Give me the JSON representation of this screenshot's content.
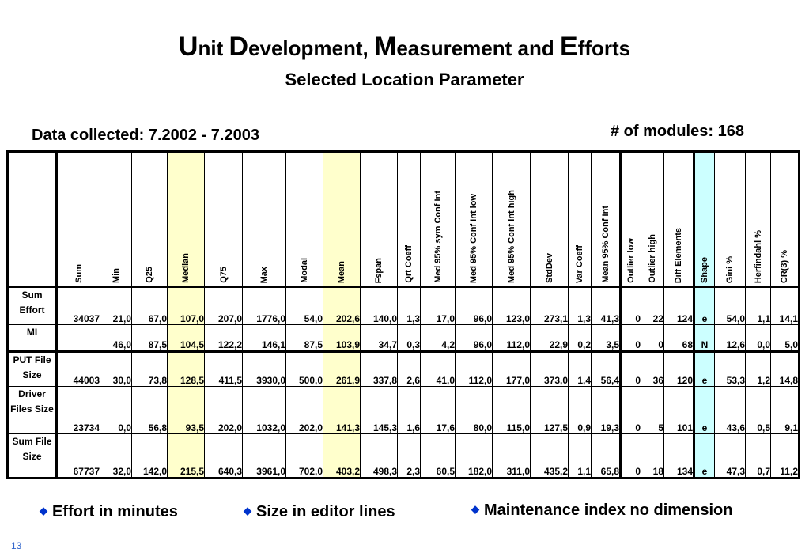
{
  "title": {
    "parts": [
      {
        "cap": "U",
        "rest": "nit "
      },
      {
        "cap": "D",
        "rest": "evelopment, "
      },
      {
        "cap": "M",
        "rest": "easurement and "
      },
      {
        "cap": "E",
        "rest": "fforts"
      }
    ],
    "subtitle": "Selected Location Parameter"
  },
  "collected": "Data collected: 7.2002 - 7.2003",
  "modules": "# of modules: 168",
  "table": {
    "headers": [
      "Sum",
      "Min",
      "Q25",
      "Median",
      "Q75",
      "Max",
      "Modal",
      "Mean",
      "Fspan",
      "Qrt Coeff",
      "Med 95% sym Conf Int",
      "Med 95% Conf Int low",
      "Med 95% Conf Int high",
      "StdDev",
      "Var Coeff",
      "Mean 95%  Conf Int",
      "Outlier low",
      "Outlier high",
      "Diff Elements",
      "Shape",
      "Gini %",
      "Herfindahl %",
      "CR(3) %"
    ],
    "rows": [
      {
        "label": [
          "Sum",
          "Effort"
        ],
        "values": [
          "34037",
          "21,0",
          "67,0",
          "107,0",
          "207,0",
          "1776,0",
          "54,0",
          "202,6",
          "140,0",
          "1,3",
          "17,0",
          "96,0",
          "123,0",
          "273,1",
          "1,3",
          "41,3",
          "0",
          "22",
          "124",
          "e",
          "54,0",
          "1,1",
          "14,1"
        ]
      },
      {
        "label": [
          "MI"
        ],
        "values": [
          "",
          "46,0",
          "87,5",
          "104,5",
          "122,2",
          "146,1",
          "87,5",
          "103,9",
          "34,7",
          "0,3",
          "4,2",
          "96,0",
          "112,0",
          "22,9",
          "0,2",
          "3,5",
          "0",
          "0",
          "68",
          "N",
          "12,6",
          "0,0",
          "5,0"
        ]
      },
      {
        "label": [
          "PUT File",
          "Size"
        ],
        "values": [
          "44003",
          "30,0",
          "73,8",
          "128,5",
          "411,5",
          "3930,0",
          "500,0",
          "261,9",
          "337,8",
          "2,6",
          "41,0",
          "112,0",
          "177,0",
          "373,0",
          "1,4",
          "56,4",
          "0",
          "36",
          "120",
          "e",
          "53,3",
          "1,2",
          "14,8"
        ]
      },
      {
        "label": [
          "Driver",
          "Files Size"
        ],
        "values": [
          "23734",
          "0,0",
          "56,8",
          "93,5",
          "202,0",
          "1032,0",
          "202,0",
          "141,3",
          "145,3",
          "1,6",
          "17,6",
          "80,0",
          "115,0",
          "127,5",
          "0,9",
          "19,3",
          "0",
          "5",
          "101",
          "e",
          "43,6",
          "0,5",
          "9,1"
        ]
      },
      {
        "label": [
          "Sum File",
          "Size"
        ],
        "values": [
          "67737",
          "32,0",
          "142,0",
          "215,5",
          "640,3",
          "3961,0",
          "702,0",
          "403,2",
          "498,3",
          "2,3",
          "60,5",
          "182,0",
          "311,0",
          "435,2",
          "1,1",
          "65,8",
          "0",
          "18",
          "134",
          "e",
          "47,3",
          "0,7",
          "11,2"
        ]
      }
    ]
  },
  "notes": [
    "Effort in minutes",
    "Size in editor lines",
    "Maintenance index no dimension"
  ],
  "page_number": "13",
  "colors": {
    "highlight": "#ffffcc",
    "shape_column": "#ccffff",
    "bullet": "#0033cc"
  }
}
